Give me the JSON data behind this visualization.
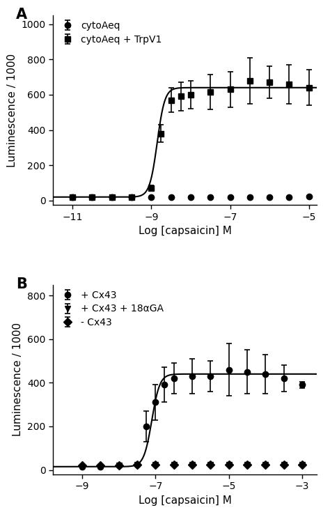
{
  "panel_A": {
    "label": "A",
    "xlabel": "Log [capsaicin] M",
    "ylabel": "Luminescence / 1000",
    "xlim": [
      -11.5,
      -4.8
    ],
    "ylim": [
      -25,
      1050
    ],
    "yticks": [
      0,
      200,
      400,
      600,
      800,
      1000
    ],
    "xticks": [
      -11,
      -9,
      -7,
      -5
    ],
    "series": [
      {
        "name": "cytoAeq",
        "marker": "o",
        "x": [
          -11,
          -10.5,
          -10,
          -9.5,
          -9,
          -8.5,
          -8,
          -7.5,
          -7,
          -6.5,
          -6,
          -5.5,
          -5
        ],
        "y": [
          20,
          20,
          20,
          20,
          20,
          20,
          20,
          20,
          20,
          20,
          20,
          20,
          25
        ],
        "yerr": [
          3,
          3,
          3,
          3,
          3,
          3,
          3,
          3,
          3,
          3,
          3,
          3,
          3
        ],
        "has_curve": false
      },
      {
        "name": "cytoAeq + TrpV1",
        "marker": "s",
        "x": [
          -11,
          -10.5,
          -10,
          -9.5,
          -9,
          -8.75,
          -8.5,
          -8.25,
          -8,
          -7.5,
          -7,
          -6.5,
          -6,
          -5.5,
          -5
        ],
        "y": [
          20,
          20,
          20,
          20,
          70,
          380,
          570,
          590,
          600,
          615,
          630,
          680,
          670,
          660,
          640
        ],
        "yerr": [
          3,
          3,
          3,
          3,
          15,
          50,
          70,
          80,
          80,
          100,
          100,
          130,
          90,
          110,
          100
        ],
        "has_curve": true,
        "curve_ec50": -8.85,
        "curve_hill": 4.5,
        "curve_top": 640,
        "curve_bottom": 20
      }
    ]
  },
  "panel_B": {
    "label": "B",
    "xlabel": "Log [capsaicin] M",
    "ylabel": "Luminescence / 1000",
    "xlim": [
      -9.8,
      -2.6
    ],
    "ylim": [
      -20,
      850
    ],
    "yticks": [
      0,
      200,
      400,
      600,
      800
    ],
    "xticks": [
      -9,
      -7,
      -5,
      -3
    ],
    "series": [
      {
        "name": "+ Cx43",
        "marker": "o",
        "x": [
          -9,
          -8.5,
          -8,
          -7.5,
          -7.25,
          -7,
          -6.75,
          -6.5,
          -6,
          -5.5,
          -5,
          -4.5,
          -4,
          -3.5,
          -3
        ],
        "y": [
          15,
          15,
          20,
          25,
          200,
          310,
          390,
          420,
          430,
          430,
          460,
          450,
          440,
          420,
          390
        ],
        "yerr": [
          3,
          3,
          3,
          5,
          70,
          80,
          80,
          70,
          80,
          70,
          120,
          100,
          90,
          60,
          15
        ],
        "has_curve": true,
        "curve_ec50": -7.1,
        "curve_hill": 4.0,
        "curve_top": 440,
        "curve_bottom": 15
      },
      {
        "name": "+ Cx43 + 18αGA",
        "marker": "v",
        "x": [
          -9,
          -8.5,
          -8,
          -7.5,
          -7,
          -6.5,
          -6,
          -5.5,
          -5,
          -4.5,
          -4,
          -3.5,
          -3
        ],
        "y": [
          15,
          15,
          20,
          25,
          25,
          25,
          25,
          25,
          25,
          25,
          25,
          25,
          25
        ],
        "yerr": [
          3,
          3,
          3,
          3,
          3,
          3,
          3,
          3,
          3,
          3,
          3,
          3,
          3
        ],
        "has_curve": false
      },
      {
        "name": "- Cx43",
        "marker": "D",
        "x": [
          -9,
          -8.5,
          -8,
          -7.5,
          -7,
          -6.5,
          -6,
          -5.5,
          -5,
          -4.5,
          -4,
          -3.5,
          -3
        ],
        "y": [
          20,
          20,
          20,
          25,
          25,
          25,
          25,
          25,
          25,
          25,
          25,
          25,
          25
        ],
        "yerr": [
          3,
          3,
          3,
          3,
          3,
          3,
          3,
          3,
          3,
          3,
          3,
          3,
          3
        ],
        "has_curve": false
      }
    ]
  },
  "bg_color": "#ffffff",
  "line_color": "#000000",
  "fontsize_label": 11,
  "fontsize_tick": 10,
  "fontsize_panel_label": 15
}
